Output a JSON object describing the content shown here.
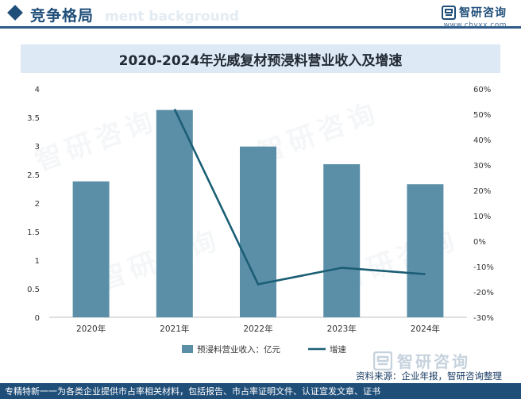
{
  "header": {
    "title": "竞争格局",
    "ghost_text": "ment background"
  },
  "brand": {
    "name": "智研咨询",
    "url": "www.chyxx.com"
  },
  "watermark_text": "智研咨询",
  "chart_data": {
    "type": "bar",
    "title": "2020-2024年光威复材预浸料营业收入及增速",
    "categories": [
      "2020年",
      "2021年",
      "2022年",
      "2023年",
      "2024年"
    ],
    "series": [
      {
        "name": "预浸料营业收入：亿元",
        "type": "bar",
        "axis": "left",
        "values": [
          2.38,
          3.63,
          2.99,
          2.68,
          2.33
        ]
      },
      {
        "name": "增速",
        "type": "line",
        "axis": "right",
        "values": [
          null,
          52,
          -17,
          -10.5,
          -13
        ]
      }
    ],
    "left_axis": {
      "min": 0,
      "max": 4,
      "step": 0.5,
      "ticks": [
        "0",
        "0.5",
        "1",
        "1.5",
        "2",
        "2.5",
        "3",
        "3.5",
        "4"
      ]
    },
    "right_axis": {
      "min": -30,
      "max": 60,
      "step": 10,
      "ticks": [
        "-30%",
        "-20%",
        "-10%",
        "0%",
        "10%",
        "20%",
        "30%",
        "40%",
        "50%",
        "60%"
      ]
    },
    "colors": {
      "bar": "#5b8fa8",
      "line": "#1b5e75"
    },
    "legend": "bottom"
  },
  "source": "资料来源：企业年报，智研咨询整理",
  "footer": {
    "logo_name": "智研咨询",
    "text": "专精特新一一为各类企业提供市占率相关材料，包括报告、市占率证明文件、认证宣发文章、证书"
  }
}
